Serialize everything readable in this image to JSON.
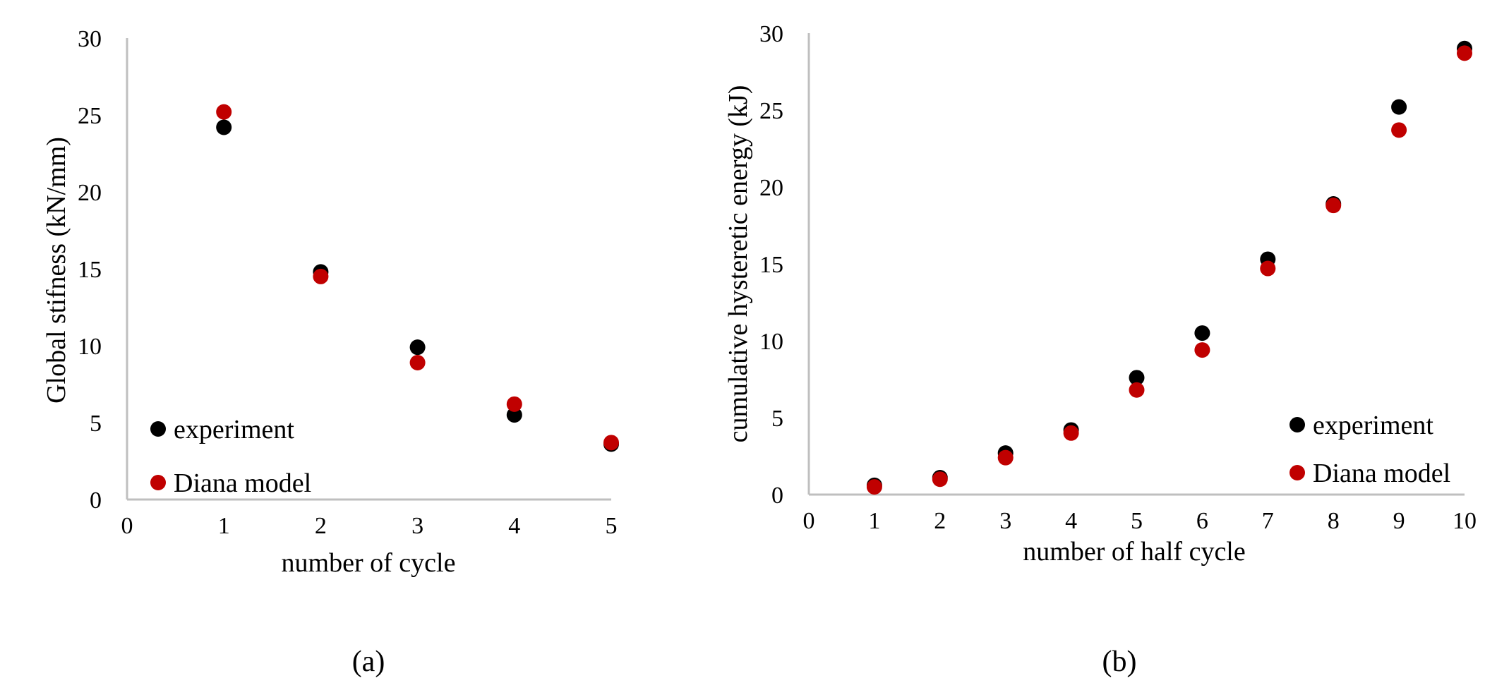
{
  "colors": {
    "experiment": "#000000",
    "diana_model": "#C00000",
    "axis": "#BFBFBF"
  },
  "chart_data": [
    {
      "type": "scatter",
      "caption": "(a)",
      "xlabel": "number of cycle",
      "ylabel": "Global stifness (kN/mm)",
      "xlim": [
        0,
        5
      ],
      "ylim": [
        0,
        30
      ],
      "xticks": [
        0,
        1,
        2,
        3,
        4,
        5
      ],
      "yticks": [
        0,
        5,
        10,
        15,
        20,
        25,
        30
      ],
      "grid": false,
      "legend_position": "bottom-left",
      "series": [
        {
          "name": "experiment",
          "color": "#000000",
          "x": [
            1,
            2,
            3,
            4,
            5
          ],
          "y": [
            24.2,
            14.8,
            9.9,
            5.5,
            3.6
          ]
        },
        {
          "name": "Diana model",
          "color": "#C00000",
          "x": [
            1,
            2,
            3,
            4,
            5
          ],
          "y": [
            25.2,
            14.5,
            8.9,
            6.2,
            3.7
          ]
        }
      ]
    },
    {
      "type": "scatter",
      "caption": "(b)",
      "xlabel": "number of  half cycle",
      "ylabel": "cumulative hysteretic energy (kJ)",
      "xlim": [
        0,
        10
      ],
      "ylim": [
        0,
        30
      ],
      "xticks": [
        0,
        1,
        2,
        3,
        4,
        5,
        6,
        7,
        8,
        9,
        10
      ],
      "yticks": [
        0,
        5,
        10,
        15,
        20,
        25,
        30
      ],
      "grid": false,
      "legend_position": "bottom-right",
      "series": [
        {
          "name": "experiment",
          "color": "#000000",
          "x": [
            1,
            2,
            3,
            4,
            5,
            6,
            7,
            8,
            9,
            10
          ],
          "y": [
            0.6,
            1.1,
            2.7,
            4.2,
            7.6,
            10.5,
            15.3,
            18.9,
            25.2,
            29.0
          ]
        },
        {
          "name": "Diana model",
          "color": "#C00000",
          "x": [
            1,
            2,
            3,
            4,
            5,
            6,
            7,
            8,
            9,
            10
          ],
          "y": [
            0.5,
            1.0,
            2.4,
            4.0,
            6.8,
            9.4,
            14.7,
            18.8,
            23.7,
            28.7
          ]
        }
      ]
    }
  ]
}
